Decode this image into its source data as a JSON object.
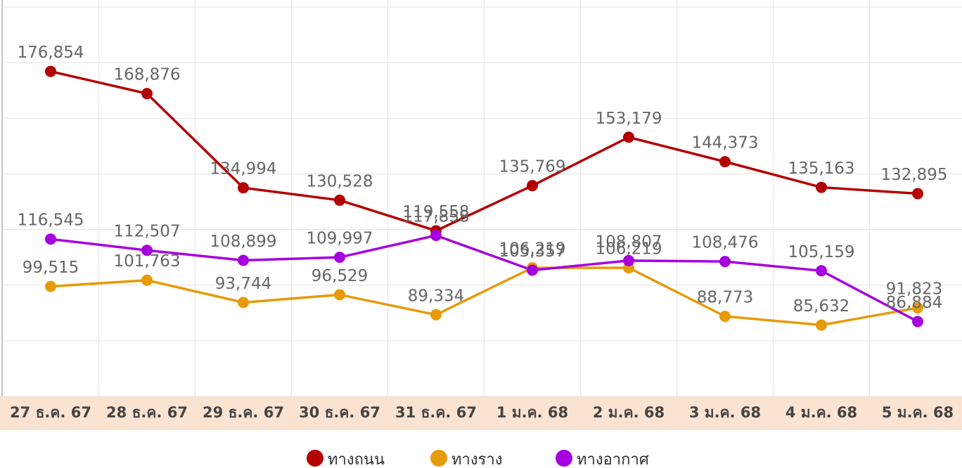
{
  "chart_data": {
    "type": "line",
    "categories": [
      "27 ธ.ค. 67",
      "28 ธ.ค. 67",
      "29 ธ.ค. 67",
      "30 ธ.ค. 67",
      "31 ธ.ค. 67",
      "1 ม.ค. 68",
      "2 ม.ค. 68",
      "3 ม.ค. 68",
      "4 ม.ค. 68",
      "5 ม.ค. 68"
    ],
    "series": [
      {
        "name": "ทางถนน",
        "color": "#b30000",
        "values": [
          176854,
          168876,
          134994,
          130528,
          119558,
          135769,
          153179,
          144373,
          135163,
          132895
        ],
        "value_labels": [
          "176,854",
          "168,876",
          "134,994",
          "130,528",
          "119,558",
          "135,769",
          "153,179",
          "144,373",
          "135,163",
          "132,895"
        ]
      },
      {
        "name": "ทางราง",
        "color": "#e69b0a",
        "values": [
          99515,
          101763,
          93744,
          96529,
          89334,
          106219,
          106219,
          88773,
          85632,
          91823
        ],
        "value_labels": [
          "99,515",
          "101,763",
          "93,744",
          "96,529",
          "89,334",
          "106,219",
          "106,219",
          "88,773",
          "85,632",
          "91,823"
        ]
      },
      {
        "name": "ทางอากาศ",
        "color": "#a600e0",
        "values": [
          116545,
          112507,
          108899,
          109997,
          117858,
          105357,
          108807,
          108476,
          105159,
          86884
        ],
        "value_labels": [
          "116,545",
          "112,507",
          "108,899",
          "109,997",
          "117,858",
          "105,357",
          "108,807",
          "108,476",
          "105,159",
          "86,884"
        ]
      }
    ],
    "ylim": [
      60000,
      200000
    ],
    "yticks": [
      60000,
      80000,
      100000,
      120000,
      140000,
      160000,
      180000,
      200000
    ],
    "grid": true,
    "legend": "bottom"
  }
}
